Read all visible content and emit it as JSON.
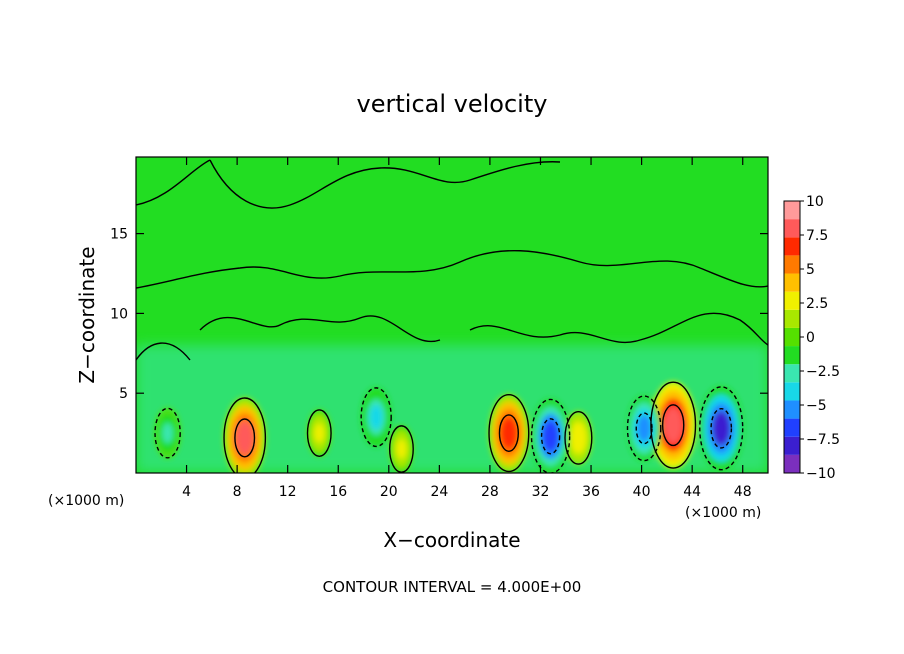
{
  "chart_data": {
    "type": "heatmap",
    "title": "vertical velocity",
    "xlabel": "X−coordinate",
    "ylabel": "Z−coordinate",
    "x_unit": "(×1000 m)",
    "y_unit": "(×1000 m)",
    "x_ticks": [
      "4",
      "8",
      "12",
      "16",
      "20",
      "24",
      "28",
      "32",
      "36",
      "40",
      "44",
      "48"
    ],
    "x_tick_values": [
      4,
      8,
      12,
      16,
      20,
      24,
      28,
      32,
      36,
      40,
      44,
      48
    ],
    "y_ticks": [
      "5",
      "10",
      "15"
    ],
    "y_tick_values": [
      5,
      10,
      15
    ],
    "xlim": [
      0,
      50
    ],
    "ylim": [
      0,
      19.8
    ],
    "colorbar": {
      "ticks": [
        "10",
        "7.5",
        "5",
        "2.5",
        "0",
        "−2.5",
        "−5",
        "−7.5",
        "−10"
      ],
      "tick_values": [
        10,
        7.5,
        5,
        2.5,
        0,
        -2.5,
        -5,
        -7.5,
        -10
      ],
      "range": [
        -10,
        10
      ],
      "colors": [
        "#7b2fbe",
        "#3b1fd0",
        "#2040ff",
        "#1f8fff",
        "#18d8e8",
        "#3ae6b0",
        "#22dd22",
        "#55e000",
        "#a8e800",
        "#f0f000",
        "#ffc000",
        "#ff7a00",
        "#ff2a00",
        "#ff5a5a",
        "#ff9a9a"
      ]
    },
    "updraft_cells": [
      {
        "x": 8.6,
        "z": 2.2,
        "w": 7.5
      },
      {
        "x": 29.5,
        "z": 2.5,
        "w": 7.0
      },
      {
        "x": 42.5,
        "z": 3.0,
        "w": 8.5
      },
      {
        "x": 35.0,
        "z": 2.2,
        "w": 3.0
      },
      {
        "x": 14.5,
        "z": 2.5,
        "w": 2.0
      },
      {
        "x": 21.0,
        "z": 1.5,
        "w": 2.0
      }
    ],
    "downdraft_cells": [
      {
        "x": 32.8,
        "z": 2.3,
        "w": -6.5
      },
      {
        "x": 46.3,
        "z": 2.8,
        "w": -8.0
      },
      {
        "x": 40.2,
        "z": 2.8,
        "w": -5.0
      },
      {
        "x": 19.0,
        "z": 3.5,
        "w": -4.0
      },
      {
        "x": 2.5,
        "z": 2.5,
        "w": -2.5
      }
    ],
    "footer": "CONTOUR INTERVAL = 4.000E+00"
  }
}
